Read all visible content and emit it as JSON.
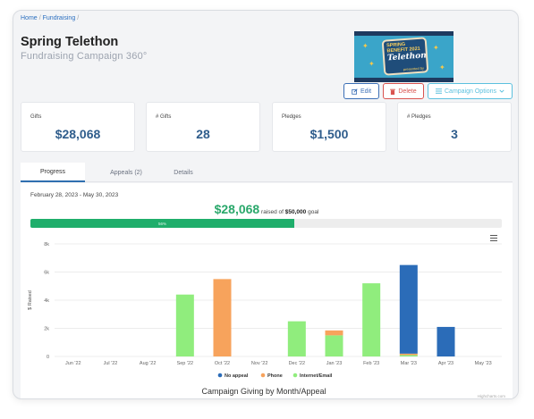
{
  "breadcrumb": {
    "home": "Home",
    "current": "Fundraising",
    "sep": "/"
  },
  "page": {
    "title": "Spring Telethon",
    "subtitle": "Fundraising Campaign 360°"
  },
  "logo": {
    "line1": "SPRING BENEFIT 2021",
    "line2": "Telethon",
    "line3": "presented by"
  },
  "actions": {
    "edit": "Edit",
    "delete": "Delete",
    "options": "Campaign Options"
  },
  "icons": {
    "edit": "edit-icon",
    "delete": "trash-icon",
    "options": "list-icon",
    "caret": "chevron-down-icon",
    "menu": "hamburger-menu-icon"
  },
  "stats": [
    {
      "label": "Gifts",
      "value": "$28,068"
    },
    {
      "label": "# Gifts",
      "value": "28"
    },
    {
      "label": "Pledges",
      "value": "$1,500"
    },
    {
      "label": "# Pledges",
      "value": "3"
    }
  ],
  "tabs": [
    "Progress",
    "Appeals (2)",
    "Details"
  ],
  "progress": {
    "date_range": "February 28, 2023 - May 30, 2023",
    "raised": "$28,068",
    "raised_of": "raised of",
    "goal": "$50,000",
    "goal_word": "goal",
    "percent": 56,
    "percent_label": "56%"
  },
  "chart_data": {
    "type": "bar",
    "stacked": true,
    "title": "Campaign Giving by Month/Appeal",
    "xlabel": "",
    "ylabel": "$ Raised",
    "ylim": [
      0,
      8000
    ],
    "yticks": [
      "0",
      "2k",
      "4k",
      "6k",
      "8k"
    ],
    "ytick_values": [
      0,
      2000,
      4000,
      6000,
      8000
    ],
    "grid": true,
    "legend_position": "bottom",
    "categories": [
      "Jun '22",
      "Jul '22",
      "Aug '22",
      "Sep '22",
      "Oct '22",
      "Nov '22",
      "Dec '22",
      "Jan '23",
      "Feb '23",
      "Mar '23",
      "Apr '23",
      "May '23"
    ],
    "series": [
      {
        "name": "Internet/Email",
        "color": "#90ed7d",
        "values": [
          0,
          0,
          0,
          4400,
          0,
          0,
          2500,
          1500,
          5200,
          100,
          0,
          0
        ]
      },
      {
        "name": "Phone",
        "color": "#f7a35c",
        "values": [
          0,
          0,
          0,
          0,
          5500,
          0,
          0,
          350,
          0,
          100,
          0,
          0
        ]
      },
      {
        "name": "No appeal",
        "color": "#2b6cb8",
        "values": [
          0,
          0,
          0,
          0,
          0,
          0,
          0,
          0,
          0,
          6300,
          2100,
          0
        ]
      }
    ],
    "legend_order": [
      "No appeal",
      "Phone",
      "Internet/Email"
    ],
    "credits": "Highcharts.com"
  }
}
